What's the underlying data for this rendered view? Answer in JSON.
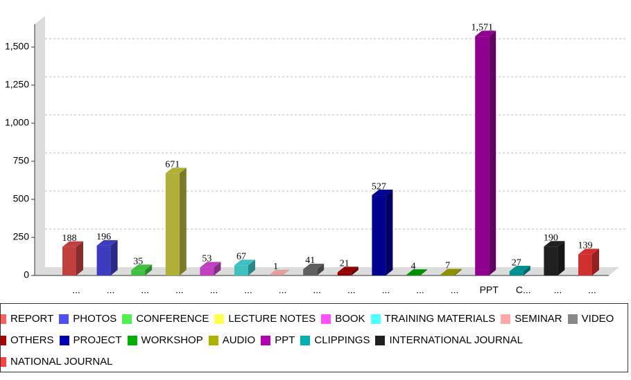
{
  "chart_data": {
    "type": "bar3d",
    "categories": [
      "...",
      "...",
      "...",
      "...",
      "...",
      "...",
      "...",
      "...",
      "...",
      "...",
      "...",
      "...",
      "PPT",
      "C...",
      "...",
      "..."
    ],
    "values": [
      188,
      196,
      35,
      671,
      53,
      67,
      1,
      41,
      21,
      527,
      4,
      7,
      1571,
      27,
      190,
      139
    ],
    "value_labels": [
      "188",
      "196",
      "35",
      "671",
      "53",
      "67",
      "1",
      "41",
      "21",
      "527",
      "4",
      "7",
      "1,571",
      "27",
      "190",
      "139"
    ],
    "bar_colors": [
      "#c04040",
      "#3c3cc0",
      "#40c040",
      "#b0b038",
      "#c040c0",
      "#40c0c0",
      "#e0a0a0",
      "#606060",
      "#900000",
      "#000090",
      "#009000",
      "#909000",
      "#900090",
      "#009090",
      "#202020",
      "#d03030"
    ],
    "ylim": [
      0,
      1650
    ],
    "yticks": [
      0,
      250,
      500,
      750,
      {
        "value": 1000,
        "label": "1,000"
      },
      {
        "value": 1250,
        "label": "1,250"
      },
      {
        "value": 1500,
        "label": "1,500"
      }
    ],
    "grid": true,
    "legend": [
      {
        "name": "REPORT",
        "color": "#ff6060"
      },
      {
        "name": "PHOTOS",
        "color": "#5050f0"
      },
      {
        "name": "CONFERENCE",
        "color": "#50f050"
      },
      {
        "name": "LECTURE NOTES",
        "color": "#ffff50"
      },
      {
        "name": "BOOK",
        "color": "#ff50ff"
      },
      {
        "name": "TRAINING MATERIALS",
        "color": "#50ffff"
      },
      {
        "name": "SEMINAR",
        "color": "#ffa8a8"
      },
      {
        "name": "VIDEO",
        "color": "#888888"
      },
      {
        "name": "OTHERS",
        "color": "#b00000"
      },
      {
        "name": "PROJECT",
        "color": "#0000b0"
      },
      {
        "name": "WORKSHOP",
        "color": "#00b000"
      },
      {
        "name": "AUDIO",
        "color": "#b0b000"
      },
      {
        "name": "PPT",
        "color": "#b000b0"
      },
      {
        "name": "CLIPPINGS",
        "color": "#00b0b0"
      },
      {
        "name": "INTERNATIONAL JOURNAL",
        "color": "#202020"
      },
      {
        "name": "NATIONAL JOURNAL",
        "color": "#ff4040"
      }
    ]
  }
}
